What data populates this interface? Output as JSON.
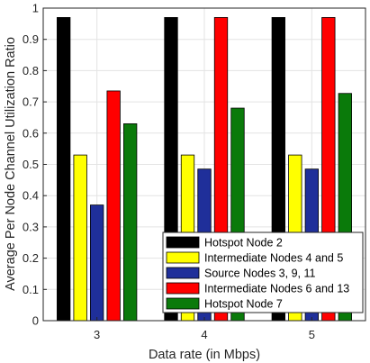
{
  "chart_data": {
    "type": "bar",
    "categories": [
      "3",
      "4",
      "5"
    ],
    "xlabel": "Data rate (in Mbps)",
    "ylabel": "Average Per Node Channel Utilization Ratio",
    "ylim": [
      0,
      1
    ],
    "yticks": [
      "0",
      "0.1",
      "0.2",
      "0.3",
      "0.4",
      "0.5",
      "0.6",
      "0.7",
      "0.8",
      "0.9",
      "1"
    ],
    "grid": true,
    "legend_position": "bottom-right",
    "series": [
      {
        "name": "Hotspot Node 2",
        "color": "#000000",
        "values": [
          0.97,
          0.97,
          0.97
        ]
      },
      {
        "name": "Intermediate Nodes 4 and 5",
        "color": "#ffff00",
        "values": [
          0.53,
          0.53,
          0.53
        ]
      },
      {
        "name": "Source Nodes 3, 9, 11",
        "color": "#1f2f9a",
        "values": [
          0.37,
          0.485,
          0.485
        ]
      },
      {
        "name": "Intermediate Nodes 6 and 13",
        "color": "#ff0000",
        "values": [
          0.735,
          0.97,
          0.97
        ]
      },
      {
        "name": "Hotspot Node 7",
        "color": "#0a7a0a",
        "values": [
          0.63,
          0.68,
          0.727
        ]
      }
    ]
  }
}
